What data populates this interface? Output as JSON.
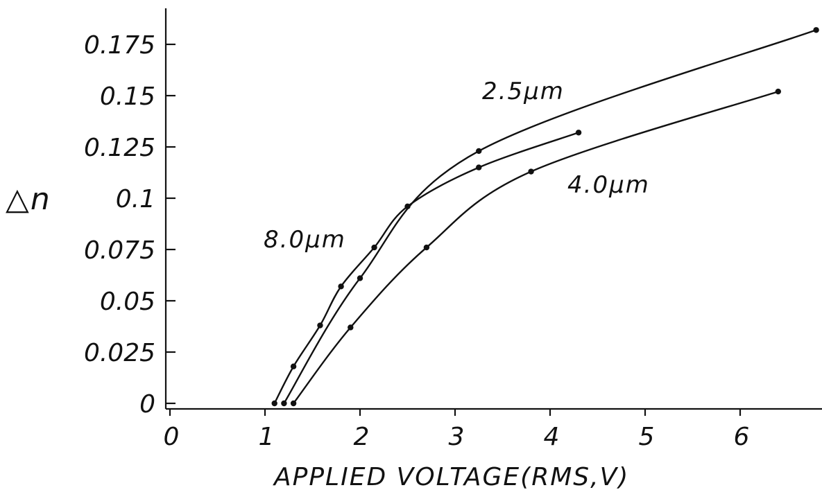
{
  "chart_data": {
    "type": "line",
    "title": "",
    "xlabel": "APPLIED VOLTAGE(RMS,V)",
    "ylabel": "△n",
    "xlim": [
      0,
      6.8
    ],
    "ylim": [
      0,
      0.19
    ],
    "x_ticks": [
      "0",
      "1",
      "2",
      "3",
      "4",
      "5",
      "6"
    ],
    "y_ticks": [
      "0",
      "0.025",
      "0.05",
      "0.075",
      "0.1",
      "0.125",
      "0.15",
      "0.175"
    ],
    "grid": false,
    "legend": "none",
    "series": [
      {
        "name": "8.0μm",
        "x": [
          1.1,
          1.3,
          1.58,
          1.8,
          2.15,
          2.5,
          3.25,
          4.3
        ],
        "y": [
          0.0,
          0.018,
          0.038,
          0.057,
          0.076,
          0.096,
          0.115,
          0.132
        ]
      },
      {
        "name": "2.5μm",
        "x": [
          1.2,
          2.0,
          3.25,
          6.8
        ],
        "y": [
          0.0,
          0.061,
          0.123,
          0.182
        ]
      },
      {
        "name": "4.0μm",
        "x": [
          1.3,
          1.9,
          2.7,
          3.8,
          6.4
        ],
        "y": [
          0.0,
          0.037,
          0.076,
          0.113,
          0.152
        ]
      }
    ]
  }
}
